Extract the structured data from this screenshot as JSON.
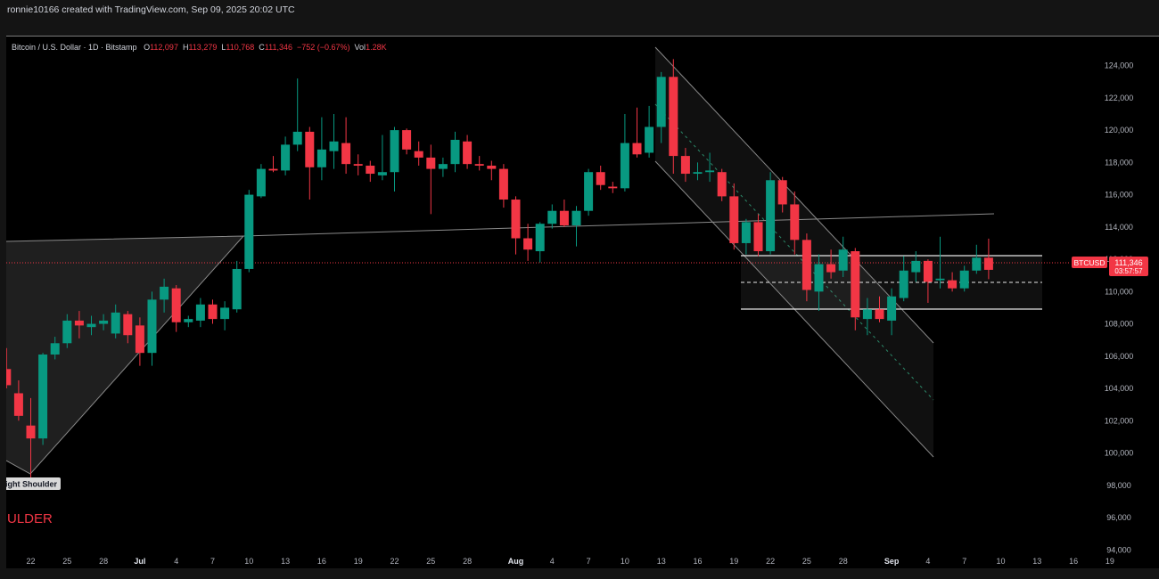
{
  "header": {
    "caption": "ronnie10166 created with TradingView.com, Sep 09, 2025 20:02 UTC"
  },
  "legend": {
    "title": "Bitcoin / U.S. Dollar · 1D · Bitstamp",
    "o_label": "O",
    "o_value": "112,097",
    "h_label": "H",
    "h_value": "113,279",
    "l_label": "L",
    "l_value": "110,768",
    "c_label": "C",
    "c_value": "111,346",
    "change": "−752 (−0.67%)",
    "vol_label": "Vol",
    "vol_value": "1.28K"
  },
  "price_tag": {
    "symbol": "BTCUSD",
    "price": "111,346",
    "countdown": "03:57:57"
  },
  "annotations": {
    "shoulder_label": "ight Shoulder",
    "pattern_text": "ULDER"
  },
  "colors": {
    "up": "#089981",
    "down": "#f23645",
    "background": "#000000",
    "axis_text": "#b2b5be",
    "pattern_label": "#f23645"
  },
  "chart_data": {
    "type": "candlestick",
    "title": "Bitcoin / U.S. Dollar · 1D · Bitstamp",
    "interval": "1D",
    "ylim": [
      92800,
      125800
    ],
    "y_ticks": [
      94000,
      96000,
      98000,
      100000,
      102000,
      104000,
      106000,
      108000,
      110000,
      112000,
      114000,
      116000,
      118000,
      120000,
      122000,
      124000
    ],
    "y_tick_labels": [
      "94,000",
      "96,000",
      "98,000",
      "100,000",
      "102,000",
      "104,000",
      "106,000",
      "108,000",
      "110,000",
      "112,000",
      "114,000",
      "116,000",
      "118,000",
      "120,000",
      "122,000",
      "124,000"
    ],
    "x_ticks": [
      {
        "day": 0,
        "label": "22"
      },
      {
        "day": 3,
        "label": "25"
      },
      {
        "day": 6,
        "label": "28"
      },
      {
        "day": 9,
        "label": "Jul"
      },
      {
        "day": 12,
        "label": "4"
      },
      {
        "day": 15,
        "label": "7"
      },
      {
        "day": 18,
        "label": "10"
      },
      {
        "day": 21,
        "label": "13"
      },
      {
        "day": 24,
        "label": "16"
      },
      {
        "day": 27,
        "label": "19"
      },
      {
        "day": 30,
        "label": "22"
      },
      {
        "day": 33,
        "label": "25"
      },
      {
        "day": 36,
        "label": "28"
      },
      {
        "day": 40,
        "label": "Aug"
      },
      {
        "day": 43,
        "label": "4"
      },
      {
        "day": 46,
        "label": "7"
      },
      {
        "day": 49,
        "label": "10"
      },
      {
        "day": 52,
        "label": "13"
      },
      {
        "day": 55,
        "label": "16"
      },
      {
        "day": 58,
        "label": "19"
      },
      {
        "day": 61,
        "label": "22"
      },
      {
        "day": 64,
        "label": "25"
      },
      {
        "day": 67,
        "label": "28"
      },
      {
        "day": 71,
        "label": "Sep"
      },
      {
        "day": 74,
        "label": "4"
      },
      {
        "day": 77,
        "label": "7"
      },
      {
        "day": 80,
        "label": "10"
      },
      {
        "day": 83,
        "label": "13"
      },
      {
        "day": 86,
        "label": "16"
      },
      {
        "day": 89,
        "label": "19"
      }
    ],
    "candles": [
      {
        "day": -2,
        "o": 105200,
        "h": 106500,
        "l": 104000,
        "c": 104200
      },
      {
        "day": -1,
        "o": 103700,
        "h": 104500,
        "l": 102000,
        "c": 102300
      },
      {
        "day": 0,
        "o": 101700,
        "h": 103400,
        "l": 98400,
        "c": 100900
      },
      {
        "day": 1,
        "o": 100900,
        "h": 106200,
        "l": 100500,
        "c": 106100
      },
      {
        "day": 2,
        "o": 106100,
        "h": 107200,
        "l": 105800,
        "c": 106800
      },
      {
        "day": 3,
        "o": 106800,
        "h": 108600,
        "l": 106500,
        "c": 108200
      },
      {
        "day": 4,
        "o": 108200,
        "h": 108800,
        "l": 107100,
        "c": 107900
      },
      {
        "day": 5,
        "o": 107800,
        "h": 108500,
        "l": 107300,
        "c": 108000
      },
      {
        "day": 6,
        "o": 108000,
        "h": 108600,
        "l": 107600,
        "c": 108200
      },
      {
        "day": 7,
        "o": 107400,
        "h": 109200,
        "l": 107100,
        "c": 108700
      },
      {
        "day": 8,
        "o": 108600,
        "h": 108800,
        "l": 106800,
        "c": 107300
      },
      {
        "day": 9,
        "o": 107900,
        "h": 108400,
        "l": 105400,
        "c": 106200
      },
      {
        "day": 10,
        "o": 106200,
        "h": 110000,
        "l": 105400,
        "c": 109500
      },
      {
        "day": 11,
        "o": 109500,
        "h": 110800,
        "l": 108700,
        "c": 110300
      },
      {
        "day": 12,
        "o": 110200,
        "h": 110400,
        "l": 107500,
        "c": 108100
      },
      {
        "day": 13,
        "o": 108100,
        "h": 108500,
        "l": 107800,
        "c": 108300
      },
      {
        "day": 14,
        "o": 108200,
        "h": 109600,
        "l": 107800,
        "c": 109200
      },
      {
        "day": 15,
        "o": 109200,
        "h": 109500,
        "l": 108000,
        "c": 108300
      },
      {
        "day": 16,
        "o": 108300,
        "h": 109400,
        "l": 107600,
        "c": 109000
      },
      {
        "day": 17,
        "o": 108900,
        "h": 111900,
        "l": 108700,
        "c": 111400
      },
      {
        "day": 18,
        "o": 111400,
        "h": 116300,
        "l": 111200,
        "c": 116000
      },
      {
        "day": 19,
        "o": 115900,
        "h": 117900,
        "l": 115800,
        "c": 117600
      },
      {
        "day": 20,
        "o": 117600,
        "h": 118400,
        "l": 117400,
        "c": 117500
      },
      {
        "day": 21,
        "o": 117500,
        "h": 119600,
        "l": 117200,
        "c": 119100
      },
      {
        "day": 22,
        "o": 119100,
        "h": 123200,
        "l": 118700,
        "c": 119900
      },
      {
        "day": 23,
        "o": 119900,
        "h": 120200,
        "l": 115700,
        "c": 117700
      },
      {
        "day": 24,
        "o": 117700,
        "h": 120800,
        "l": 116900,
        "c": 118800
      },
      {
        "day": 25,
        "o": 118700,
        "h": 121000,
        "l": 117600,
        "c": 119300
      },
      {
        "day": 26,
        "o": 119200,
        "h": 120800,
        "l": 117300,
        "c": 117900
      },
      {
        "day": 27,
        "o": 117900,
        "h": 118500,
        "l": 117200,
        "c": 117800
      },
      {
        "day": 28,
        "o": 117800,
        "h": 118100,
        "l": 116800,
        "c": 117300
      },
      {
        "day": 29,
        "o": 117200,
        "h": 119700,
        "l": 116900,
        "c": 117400
      },
      {
        "day": 30,
        "o": 117400,
        "h": 120200,
        "l": 116200,
        "c": 120000
      },
      {
        "day": 31,
        "o": 120000,
        "h": 120100,
        "l": 118500,
        "c": 118800
      },
      {
        "day": 32,
        "o": 118700,
        "h": 119300,
        "l": 117800,
        "c": 118300
      },
      {
        "day": 33,
        "o": 118300,
        "h": 119100,
        "l": 114800,
        "c": 117600
      },
      {
        "day": 34,
        "o": 117600,
        "h": 118300,
        "l": 117100,
        "c": 117900
      },
      {
        "day": 35,
        "o": 117900,
        "h": 119900,
        "l": 117400,
        "c": 119400
      },
      {
        "day": 36,
        "o": 119300,
        "h": 119700,
        "l": 117600,
        "c": 117900
      },
      {
        "day": 37,
        "o": 117900,
        "h": 118400,
        "l": 117500,
        "c": 117800
      },
      {
        "day": 38,
        "o": 117800,
        "h": 118100,
        "l": 116900,
        "c": 117600
      },
      {
        "day": 39,
        "o": 117600,
        "h": 117900,
        "l": 115200,
        "c": 115700
      },
      {
        "day": 40,
        "o": 115700,
        "h": 115900,
        "l": 112300,
        "c": 113300
      },
      {
        "day": 41,
        "o": 113300,
        "h": 114200,
        "l": 111900,
        "c": 112600
      },
      {
        "day": 42,
        "o": 112500,
        "h": 114300,
        "l": 111800,
        "c": 114200
      },
      {
        "day": 43,
        "o": 114200,
        "h": 115400,
        "l": 113900,
        "c": 115000
      },
      {
        "day": 44,
        "o": 115000,
        "h": 115700,
        "l": 114000,
        "c": 114100
      },
      {
        "day": 45,
        "o": 114100,
        "h": 115300,
        "l": 112800,
        "c": 115000
      },
      {
        "day": 46,
        "o": 115000,
        "h": 117600,
        "l": 114700,
        "c": 117400
      },
      {
        "day": 47,
        "o": 117400,
        "h": 117800,
        "l": 116300,
        "c": 116600
      },
      {
        "day": 48,
        "o": 116500,
        "h": 116800,
        "l": 116100,
        "c": 116400
      },
      {
        "day": 49,
        "o": 116400,
        "h": 121000,
        "l": 116200,
        "c": 119200
      },
      {
        "day": 50,
        "o": 119200,
        "h": 121400,
        "l": 118300,
        "c": 118500
      },
      {
        "day": 51,
        "o": 118600,
        "h": 121500,
        "l": 118300,
        "c": 120200
      },
      {
        "day": 52,
        "o": 120200,
        "h": 123600,
        "l": 119200,
        "c": 123300
      },
      {
        "day": 53,
        "o": 123300,
        "h": 124400,
        "l": 117300,
        "c": 118400
      },
      {
        "day": 54,
        "o": 118400,
        "h": 118900,
        "l": 116800,
        "c": 117300
      },
      {
        "day": 55,
        "o": 117300,
        "h": 118000,
        "l": 116900,
        "c": 117400
      },
      {
        "day": 56,
        "o": 117400,
        "h": 118600,
        "l": 116800,
        "c": 117500
      },
      {
        "day": 57,
        "o": 117400,
        "h": 117600,
        "l": 115600,
        "c": 115900
      },
      {
        "day": 58,
        "o": 115900,
        "h": 116700,
        "l": 112600,
        "c": 113000
      },
      {
        "day": 59,
        "o": 113000,
        "h": 114500,
        "l": 112300,
        "c": 114300
      },
      {
        "day": 60,
        "o": 114300,
        "h": 114800,
        "l": 112200,
        "c": 112500
      },
      {
        "day": 61,
        "o": 112500,
        "h": 117400,
        "l": 112300,
        "c": 116900
      },
      {
        "day": 62,
        "o": 116900,
        "h": 117100,
        "l": 114900,
        "c": 115400
      },
      {
        "day": 63,
        "o": 115400,
        "h": 116200,
        "l": 112300,
        "c": 113200
      },
      {
        "day": 64,
        "o": 113200,
        "h": 113600,
        "l": 109400,
        "c": 110100
      },
      {
        "day": 65,
        "o": 110000,
        "h": 112300,
        "l": 108800,
        "c": 111700
      },
      {
        "day": 66,
        "o": 111700,
        "h": 112600,
        "l": 110800,
        "c": 111200
      },
      {
        "day": 67,
        "o": 111300,
        "h": 113400,
        "l": 110900,
        "c": 112600
      },
      {
        "day": 68,
        "o": 112500,
        "h": 112700,
        "l": 107600,
        "c": 108400
      },
      {
        "day": 69,
        "o": 108300,
        "h": 109600,
        "l": 107300,
        "c": 108900
      },
      {
        "day": 70,
        "o": 108900,
        "h": 109700,
        "l": 108100,
        "c": 108300
      },
      {
        "day": 71,
        "o": 108200,
        "h": 110200,
        "l": 107300,
        "c": 109700
      },
      {
        "day": 72,
        "o": 109600,
        "h": 112200,
        "l": 109400,
        "c": 111300
      },
      {
        "day": 73,
        "o": 111200,
        "h": 112500,
        "l": 110600,
        "c": 111900
      },
      {
        "day": 74,
        "o": 111900,
        "h": 112000,
        "l": 109300,
        "c": 110600
      },
      {
        "day": 75,
        "o": 110700,
        "h": 113400,
        "l": 110200,
        "c": 110800
      },
      {
        "day": 76,
        "o": 110700,
        "h": 111200,
        "l": 110000,
        "c": 110200
      },
      {
        "day": 77,
        "o": 110200,
        "h": 111600,
        "l": 110000,
        "c": 111300
      },
      {
        "day": 78,
        "o": 111300,
        "h": 112900,
        "l": 111100,
        "c": 112100
      },
      {
        "day": 79,
        "o": 112097,
        "h": 113279,
        "l": 110768,
        "c": 111346
      }
    ]
  }
}
